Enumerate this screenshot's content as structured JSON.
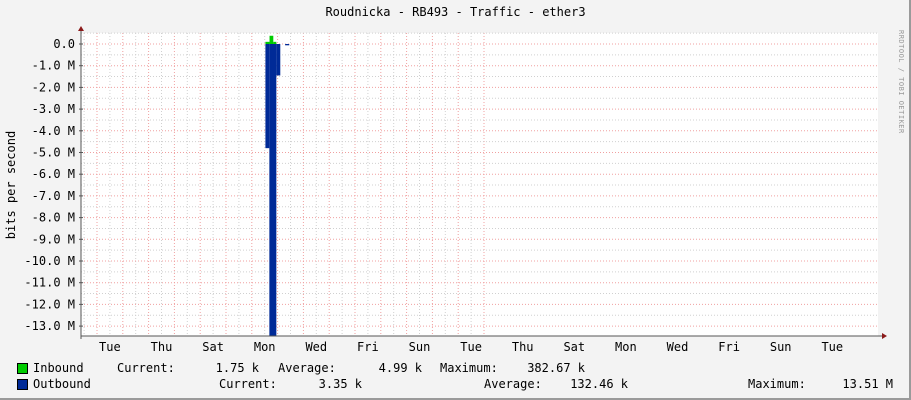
{
  "chart_data": {
    "type": "area",
    "title": "Roudnicka - RB493 - Traffic - ether3",
    "ylabel": "bits per second",
    "watermark": "RRDTOOL / TOBI OETIKER",
    "ylim": [
      -13450000,
      500000
    ],
    "yticks": [
      {
        "value": 0,
        "label": "0.0"
      },
      {
        "value": -1000000,
        "label": "-1.0 M"
      },
      {
        "value": -2000000,
        "label": "-2.0 M"
      },
      {
        "value": -3000000,
        "label": "-3.0 M"
      },
      {
        "value": -4000000,
        "label": "-4.0 M"
      },
      {
        "value": -5000000,
        "label": "-5.0 M"
      },
      {
        "value": -6000000,
        "label": "-6.0 M"
      },
      {
        "value": -7000000,
        "label": "-7.0 M"
      },
      {
        "value": -8000000,
        "label": "-8.0 M"
      },
      {
        "value": -9000000,
        "label": "-9.0 M"
      },
      {
        "value": -10000000,
        "label": "-10.0 M"
      },
      {
        "value": -11000000,
        "label": "-11.0 M"
      },
      {
        "value": -12000000,
        "label": "-12.0 M"
      },
      {
        "value": -13000000,
        "label": "-13.0 M"
      }
    ],
    "xrange": [
      "W1 Mon 09:10",
      "W3 Wed 06:30"
    ],
    "xticks": [
      {
        "at": "W1 Tue 12:00",
        "label": "Tue"
      },
      {
        "at": "W1 Thu 12:00",
        "label": "Thu"
      },
      {
        "at": "W1 Sat 12:00",
        "label": "Sat"
      },
      {
        "at": "W2 Mon 12:00",
        "label": "Mon"
      },
      {
        "at": "W2 Wed 12:00",
        "label": "Wed"
      },
      {
        "at": "W2 Fri 12:00",
        "label": "Fri"
      },
      {
        "at": "W2 Sun 12:00",
        "label": "Sun"
      },
      {
        "at": "W3 Tue 12:00",
        "label": "Tue"
      },
      {
        "at": "W3 Thu 12:00",
        "label": "Thu"
      },
      {
        "at": "W3 Sat 12:00",
        "label": "Sat"
      },
      {
        "at": "W4 Mon 12:00",
        "label": "Mon"
      },
      {
        "at": "W4 Wed 12:00",
        "label": "Wed"
      },
      {
        "at": "W4 Fri 12:00",
        "label": "Fri"
      },
      {
        "at": "W4 Sun 12:00",
        "label": "Sun"
      },
      {
        "at": "W5 Tue 12:00",
        "label": "Tue"
      }
    ],
    "grid": true,
    "series": [
      {
        "name": "Inbound",
        "color": "#00cc00",
        "segments": [
          {
            "start": "W2 Mon 12:40",
            "end": "W2 Mon 16:30",
            "value": 100000
          },
          {
            "start": "W2 Mon 16:30",
            "end": "W2 Mon 20:00",
            "value": 380000
          },
          {
            "start": "W2 Mon 20:00",
            "end": "W2 Mon 22:50",
            "value": 100000
          },
          {
            "start": "W4 Mon 17:00",
            "end": "W4 Mon 20:50",
            "value": 20000
          }
        ],
        "current": "1.75 k",
        "average": "4.99 k",
        "maximum": "382.67 k"
      },
      {
        "name": "Outbound",
        "color": "#002a97",
        "segments": [
          {
            "start": "W2 Mon 12:40",
            "end": "W2 Mon 16:20",
            "value": -4800000
          },
          {
            "start": "W2 Mon 16:20",
            "end": "W2 Mon 22:50",
            "value": -13510000
          },
          {
            "start": "W2 Mon 22:50",
            "end": "W2 Tue 02:30",
            "value": -1450000
          },
          {
            "start": "W2 Tue 07:00",
            "end": "W2 Tue 10:50",
            "value": -60000
          }
        ],
        "current": "3.35 k",
        "average": "132.46 k",
        "maximum": "13.51 M"
      }
    ]
  },
  "legend": {
    "current_label": "Current:",
    "average_label": "Average:",
    "maximum_label": "Maximum:"
  }
}
